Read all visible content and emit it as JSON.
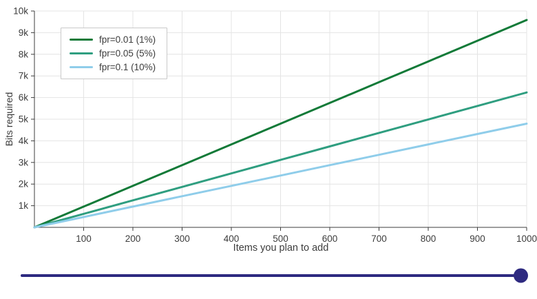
{
  "chart_data": {
    "type": "line",
    "title": "",
    "xlabel": "Items you plan to add",
    "ylabel": "Bits required",
    "xlim": [
      0,
      1000
    ],
    "ylim": [
      0,
      10000
    ],
    "grid": true,
    "legend_position": "top-left",
    "x_ticks": [
      100,
      200,
      300,
      400,
      500,
      600,
      700,
      800,
      900,
      1000
    ],
    "y_ticks": [
      {
        "value": 1000,
        "label": "1k"
      },
      {
        "value": 2000,
        "label": "2k"
      },
      {
        "value": 3000,
        "label": "3k"
      },
      {
        "value": 4000,
        "label": "4k"
      },
      {
        "value": 5000,
        "label": "5k"
      },
      {
        "value": 6000,
        "label": "6k"
      },
      {
        "value": 7000,
        "label": "7k"
      },
      {
        "value": 8000,
        "label": "8k"
      },
      {
        "value": 9000,
        "label": "9k"
      },
      {
        "value": 10000,
        "label": "10k"
      }
    ],
    "x": [
      0,
      100,
      200,
      300,
      400,
      500,
      600,
      700,
      800,
      900,
      1000
    ],
    "series": [
      {
        "name": "fpr=0.01 (1%)",
        "color": "#127a38",
        "values": [
          0,
          959,
          1917,
          2876,
          3834,
          4793,
          5751,
          6710,
          7668,
          8627,
          9585
        ]
      },
      {
        "name": "fpr=0.05 (5%)",
        "color": "#2f9e80",
        "values": [
          0,
          624,
          1247,
          1871,
          2494,
          3118,
          3741,
          4365,
          4988,
          5612,
          6235
        ]
      },
      {
        "name": "fpr=0.1 (10%)",
        "color": "#8fcdea",
        "values": [
          0,
          479,
          959,
          1438,
          1917,
          2396,
          2876,
          3355,
          3834,
          4314,
          4793
        ]
      }
    ]
  },
  "divider": {
    "color": "#2e2a80"
  }
}
